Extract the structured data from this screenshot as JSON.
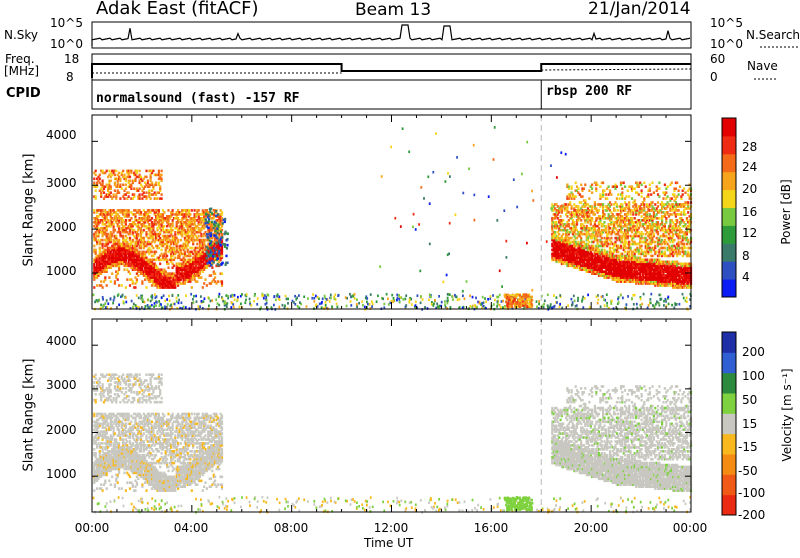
{
  "header": {
    "station": "Adak East (fitACF)",
    "beam": "Beam 13",
    "date": "21/Jan/2014"
  },
  "strip": {
    "nsky_label": "N.Sky",
    "nsky_ticks": [
      "10^5",
      "10^0"
    ],
    "nsearch_label": "N.Search",
    "nsearch_ticks": [
      "10^5",
      "10^0"
    ],
    "freq_label": "Freq.",
    "freq_unit": "[MHz]",
    "freq_ticks": [
      "18",
      "8"
    ],
    "nave_label": "Nave",
    "nave_ticks": [
      "60",
      "0"
    ],
    "cpid_label": "CPID",
    "cpid_segments": [
      "normalsound (fast) -157 RF",
      "rbsp 200 RF"
    ]
  },
  "chart_data": [
    {
      "type": "heatmap",
      "name": "power",
      "ylabel": "Slant Range [km]",
      "xlabel": "",
      "ylim": [
        180,
        4600
      ],
      "y_ticks": [
        "1000",
        "2000",
        "3000",
        "4000"
      ],
      "colorbar": {
        "label": "Power [dB]",
        "ticks": [
          "28",
          "24",
          "20",
          "16",
          "12",
          "8",
          "4"
        ],
        "colors": [
          "#0b1cf5",
          "#2e4fc2",
          "#3a7a6a",
          "#2e9b3a",
          "#77c93f",
          "#f4d51a",
          "#f6a41c",
          "#f46a19",
          "#ef2b14",
          "#e30000"
        ]
      }
    },
    {
      "type": "heatmap",
      "name": "velocity",
      "ylabel": "Slant Range [km]",
      "xlabel": "Time UT",
      "ylim": [
        180,
        4600
      ],
      "y_ticks": [
        "1000",
        "2000",
        "3000",
        "4000"
      ],
      "x_ticks": [
        "00:00",
        "04:00",
        "08:00",
        "12:00",
        "16:00",
        "20:00",
        "00:00"
      ],
      "colorbar": {
        "label": "Velocity [m s⁻¹]",
        "ticks": [
          "200",
          "100",
          "50",
          "15",
          "-15",
          "-50",
          "-100",
          "-200"
        ],
        "colors": [
          "#1f2fa8",
          "#2f5fd3",
          "#2b8a3e",
          "#7fd23f",
          "#c8c8c0",
          "#f8b81e",
          "#f58b13",
          "#f05a16",
          "#ea2a12"
        ]
      }
    }
  ],
  "colors": {
    "ground_scatter": "#c8c8c0",
    "cpid_switch_line": "#b8b8b8"
  }
}
